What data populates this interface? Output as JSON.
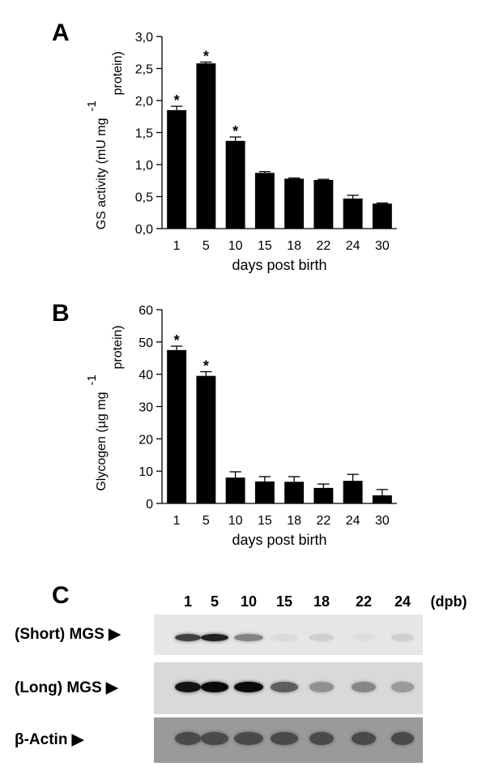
{
  "panels": {
    "a_letter": "A",
    "b_letter": "B",
    "c_letter": "C"
  },
  "chart_data": [
    {
      "type": "bar",
      "panel": "A",
      "categories": [
        "1",
        "5",
        "10",
        "15",
        "18",
        "22",
        "24",
        "30"
      ],
      "values": [
        1.85,
        2.58,
        1.37,
        0.87,
        0.78,
        0.76,
        0.47,
        0.39
      ],
      "errors": [
        0.06,
        0.02,
        0.06,
        0.02,
        0.01,
        0.01,
        0.05,
        0.01
      ],
      "significant": [
        true,
        true,
        true,
        false,
        false,
        false,
        false,
        false
      ],
      "marker": "*",
      "xlabel": "days post birth",
      "ylabel": "GS activity (mU mg",
      "ylabel_sup": "-1",
      "ylabel_tail": "protein)",
      "ylim": [
        0,
        3.0
      ],
      "yticks": [
        0,
        0.5,
        1.0,
        1.5,
        2.0,
        2.5,
        3.0
      ],
      "ytick_labels": [
        "0,0",
        "0,5",
        "1,0",
        "1,5",
        "2,0",
        "2,5",
        "3,0"
      ],
      "grid": false,
      "bar_color": "#000000"
    },
    {
      "type": "bar",
      "panel": "B",
      "categories": [
        "1",
        "5",
        "10",
        "15",
        "18",
        "22",
        "24",
        "30"
      ],
      "values": [
        47.5,
        39.5,
        8.0,
        6.8,
        6.7,
        4.8,
        7.0,
        2.5
      ],
      "errors": [
        1.2,
        1.3,
        1.8,
        1.5,
        1.6,
        1.2,
        2.0,
        1.8
      ],
      "significant": [
        true,
        true,
        false,
        false,
        false,
        false,
        false,
        false
      ],
      "marker": "*",
      "xlabel": "days post birth",
      "ylabel": "Glycogen (µg mg",
      "ylabel_sup": "-1",
      "ylabel_tail": "protein)",
      "ylim": [
        0,
        60
      ],
      "yticks": [
        0,
        10,
        20,
        30,
        40,
        50,
        60
      ],
      "ytick_labels": [
        "0",
        "10",
        "20",
        "30",
        "40",
        "50",
        "60"
      ],
      "grid": false,
      "bar_color": "#000000"
    }
  ],
  "blot": {
    "lanes": [
      "1",
      "5",
      "10",
      "15",
      "18",
      "22",
      "24"
    ],
    "unit": "(dpb)",
    "rows": [
      {
        "label": "(Short) MGS ▶",
        "intensity": [
          0.75,
          0.9,
          0.45,
          0.05,
          0.1,
          0.03,
          0.1
        ]
      },
      {
        "label": "(Long) MGS ▶",
        "intensity": [
          0.95,
          1.0,
          1.0,
          0.6,
          0.35,
          0.4,
          0.3
        ]
      },
      {
        "label": "β-Actin ▶",
        "intensity": [
          0.55,
          0.55,
          0.55,
          0.55,
          0.55,
          0.55,
          0.55
        ]
      }
    ]
  }
}
